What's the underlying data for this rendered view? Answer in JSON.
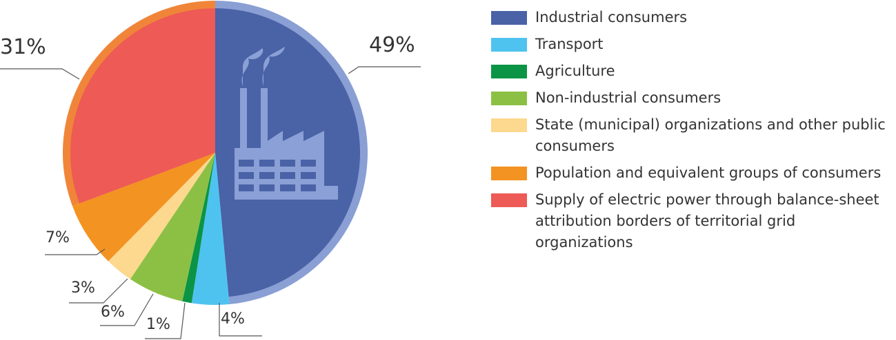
{
  "chart_data": {
    "type": "pie",
    "categories": [
      "Industrial consumers",
      "Transport",
      "Agriculture",
      "Non-industrial consumers",
      "State (municipal) organizations and other public consumers",
      "Population and equivalent groups of consumers",
      "Supply of electric power through balance-sheet attribution borders of territorial grid organizations"
    ],
    "values": [
      49,
      4,
      1,
      6,
      3,
      7,
      31
    ],
    "value_labels": [
      "49%",
      "4%",
      "1%",
      "6%",
      "3%",
      "7%",
      "31%"
    ],
    "colors": [
      "#4a62a6",
      "#4fc3ef",
      "#0b9445",
      "#8cc045",
      "#fdd88f",
      "#f39322",
      "#ee5a55"
    ],
    "legend": "right"
  }
}
